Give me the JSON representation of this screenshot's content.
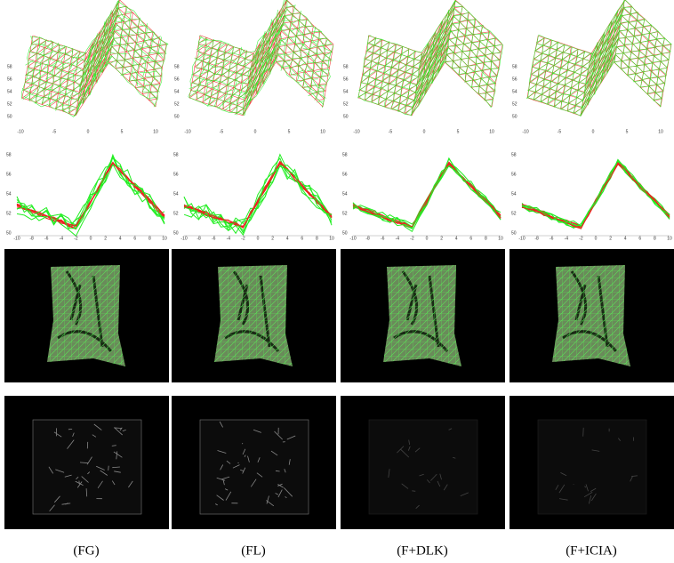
{
  "columns": [
    {
      "caption": "(FG)"
    },
    {
      "caption": "(FL)"
    },
    {
      "caption": "(F+DLK)"
    },
    {
      "caption": "(F+ICIA)"
    }
  ],
  "mesh_plot": {
    "x_ticks": [
      -10,
      -5,
      0,
      5,
      10
    ],
    "z_ticks": [
      50,
      52,
      54,
      56,
      58
    ]
  },
  "profile_plot": {
    "x_ticks": [
      -10,
      -8,
      -6,
      -4,
      -2,
      0,
      2,
      4,
      6,
      8,
      10
    ],
    "z_ticks": [
      50,
      52,
      54,
      56,
      58
    ]
  }
}
